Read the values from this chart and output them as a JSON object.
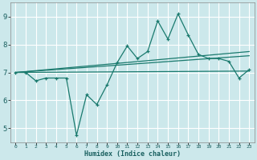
{
  "xlabel": "Humidex (Indice chaleur)",
  "bg_color": "#cce8eb",
  "grid_color": "#ffffff",
  "line_color": "#1a7a6e",
  "xlim": [
    -0.5,
    23.5
  ],
  "ylim": [
    4.5,
    9.5
  ],
  "yticks": [
    5,
    6,
    7,
    8,
    9
  ],
  "xticks": [
    0,
    1,
    2,
    3,
    4,
    5,
    6,
    7,
    8,
    9,
    10,
    11,
    12,
    13,
    14,
    15,
    16,
    17,
    18,
    19,
    20,
    21,
    22,
    23
  ],
  "main_line_x": [
    0,
    1,
    2,
    3,
    4,
    5,
    6,
    7,
    8,
    9,
    10,
    11,
    12,
    13,
    14,
    15,
    16,
    17,
    18,
    19,
    20,
    21,
    22,
    23
  ],
  "main_line_y": [
    7.0,
    7.0,
    6.7,
    6.8,
    6.8,
    6.8,
    4.75,
    6.2,
    5.85,
    6.55,
    7.35,
    7.95,
    7.5,
    7.75,
    8.85,
    8.2,
    9.1,
    8.35,
    7.65,
    7.5,
    7.5,
    7.4,
    6.8,
    7.1
  ],
  "trend_line1_x": [
    0,
    23
  ],
  "trend_line1_y": [
    7.0,
    7.05
  ],
  "trend_line2_x": [
    0,
    23
  ],
  "trend_line2_y": [
    7.0,
    7.6
  ],
  "trend_line3_x": [
    0,
    23
  ],
  "trend_line3_y": [
    7.0,
    7.75
  ]
}
